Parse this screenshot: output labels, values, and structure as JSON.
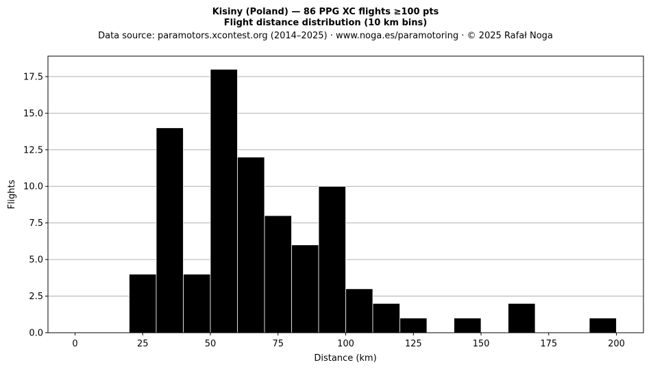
{
  "chart_data": {
    "type": "bar",
    "title": "Kisiny (Poland)  —  86 PPG XC flights ≥100 pts",
    "subtitle": "Flight distance distribution (10 km bins)",
    "source_line": "Data source: paramotors.xcontest.org (2014–2025)  ·  www.noga.es/paramotoring  ·  © 2025 Rafał Noga",
    "xlabel": "Distance (km)",
    "ylabel": "Flights",
    "xlim": [
      -10,
      210
    ],
    "ylim": [
      0,
      18.9
    ],
    "bin_width": 10,
    "bins": [
      {
        "start": 20,
        "value": 4
      },
      {
        "start": 30,
        "value": 14
      },
      {
        "start": 40,
        "value": 4
      },
      {
        "start": 50,
        "value": 18
      },
      {
        "start": 60,
        "value": 12
      },
      {
        "start": 70,
        "value": 8
      },
      {
        "start": 80,
        "value": 6
      },
      {
        "start": 90,
        "value": 10
      },
      {
        "start": 100,
        "value": 3
      },
      {
        "start": 110,
        "value": 2
      },
      {
        "start": 120,
        "value": 1
      },
      {
        "start": 140,
        "value": 1
      },
      {
        "start": 160,
        "value": 2
      },
      {
        "start": 190,
        "value": 1
      }
    ],
    "x_ticks": [
      0,
      25,
      50,
      75,
      100,
      125,
      150,
      175,
      200
    ],
    "x_tick_labels": [
      "0",
      "25",
      "50",
      "75",
      "100",
      "125",
      "150",
      "175",
      "200"
    ],
    "y_ticks": [
      0,
      2.5,
      5,
      7.5,
      10,
      12.5,
      15,
      17.5
    ],
    "y_tick_labels": [
      "0.0",
      "2.5",
      "5.0",
      "7.5",
      "10.0",
      "12.5",
      "15.0",
      "17.5"
    ],
    "grid": "y",
    "bar_color": "#000000",
    "bar_edge_color": "#ffffff",
    "grid_color": "#b0b0b0"
  }
}
